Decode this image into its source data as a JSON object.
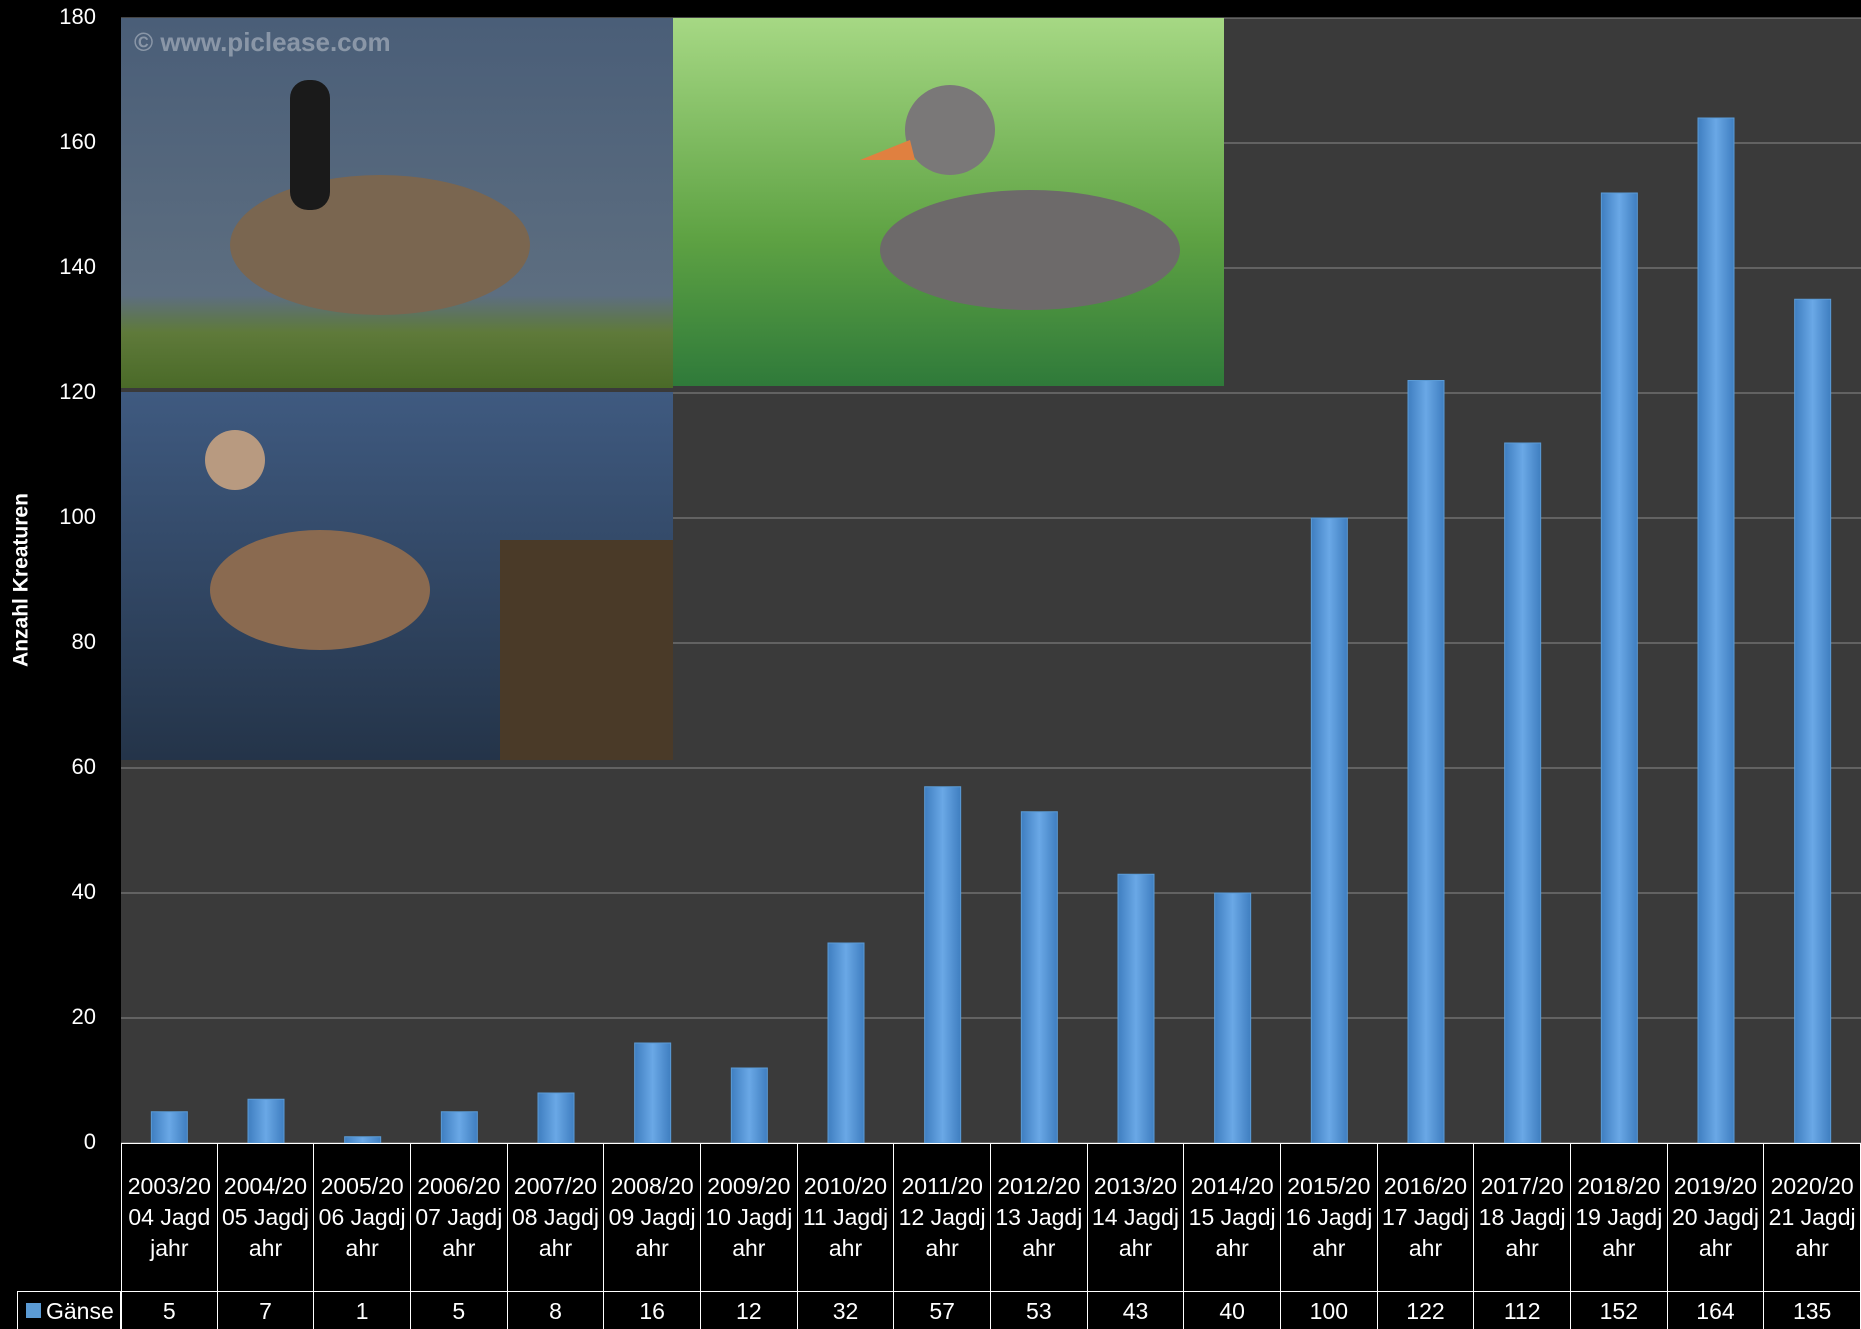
{
  "chart_data": {
    "type": "bar",
    "y_axis_label": "Anzahl Kreaturen",
    "categories": [
      "2003/2004 Jagdjahr",
      "2004/2005 Jagdjahr",
      "2005/2006 Jagdjahr",
      "2006/2007 Jagdjahr",
      "2007/2008 Jagdjahr",
      "2008/2009 Jagdjahr",
      "2009/2010 Jagdjahr",
      "2010/2011 Jagdjahr",
      "2011/2012 Jagdjahr",
      "2012/2013 Jagdjahr",
      "2013/2014 Jagdjahr",
      "2014/2015 Jagdjahr",
      "2015/2016 Jagdjahr",
      "2016/2017 Jagdjahr",
      "2017/2018 Jagdjahr",
      "2018/2019 Jagdjahr",
      "2019/2020 Jagdjahr",
      "2020/2021 Jagdjahr"
    ],
    "series": [
      {
        "name": "Gänse",
        "color": "#5b9bd5",
        "values": [
          5,
          7,
          1,
          5,
          8,
          16,
          12,
          32,
          57,
          53,
          43,
          40,
          100,
          122,
          112,
          152,
          164,
          135
        ]
      }
    ],
    "ylim": [
      0,
      180
    ],
    "yticks": [
      0,
      20,
      40,
      60,
      80,
      100,
      120,
      140,
      160,
      180
    ],
    "grid": true,
    "photo_watermark": "© www.piclease.com"
  }
}
